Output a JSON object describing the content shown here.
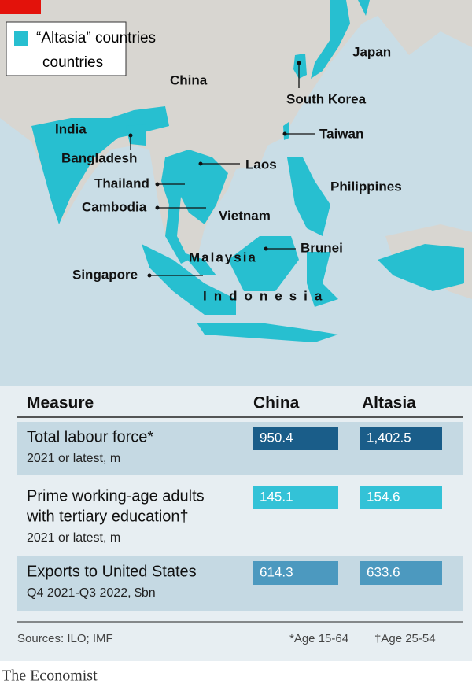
{
  "legend": {
    "label": "“Altasia” countries"
  },
  "map": {
    "labels": [
      "China",
      "Japan",
      "South Korea",
      "Taiwan",
      "India",
      "Bangladesh",
      "Laos",
      "Thailand",
      "Cambodia",
      "Vietnam",
      "Philippines",
      "Malaysia",
      "Brunei",
      "Singapore",
      "Indonesia"
    ]
  },
  "table": {
    "header": [
      "Measure",
      "China",
      "Altasia"
    ],
    "rows": [
      {
        "measure": "Total labour force*",
        "sub": "2021 or latest, m",
        "china": "950.4",
        "altasia": "1,402.5"
      },
      {
        "measure": "Prime working-age adults",
        "measure2": "with tertiary education†",
        "sub": "2021 or latest, m",
        "china": "145.1",
        "altasia": "154.6"
      },
      {
        "measure": "Exports to United States",
        "sub": "Q4 2021-Q3 2022, $bn",
        "china": "614.3",
        "altasia": "633.6"
      }
    ]
  },
  "footer": {
    "sources": "Sources: ILO; IMF",
    "note1": "*Age 15-64",
    "note2": "†Age 25-54",
    "brand": "The Economist"
  }
}
